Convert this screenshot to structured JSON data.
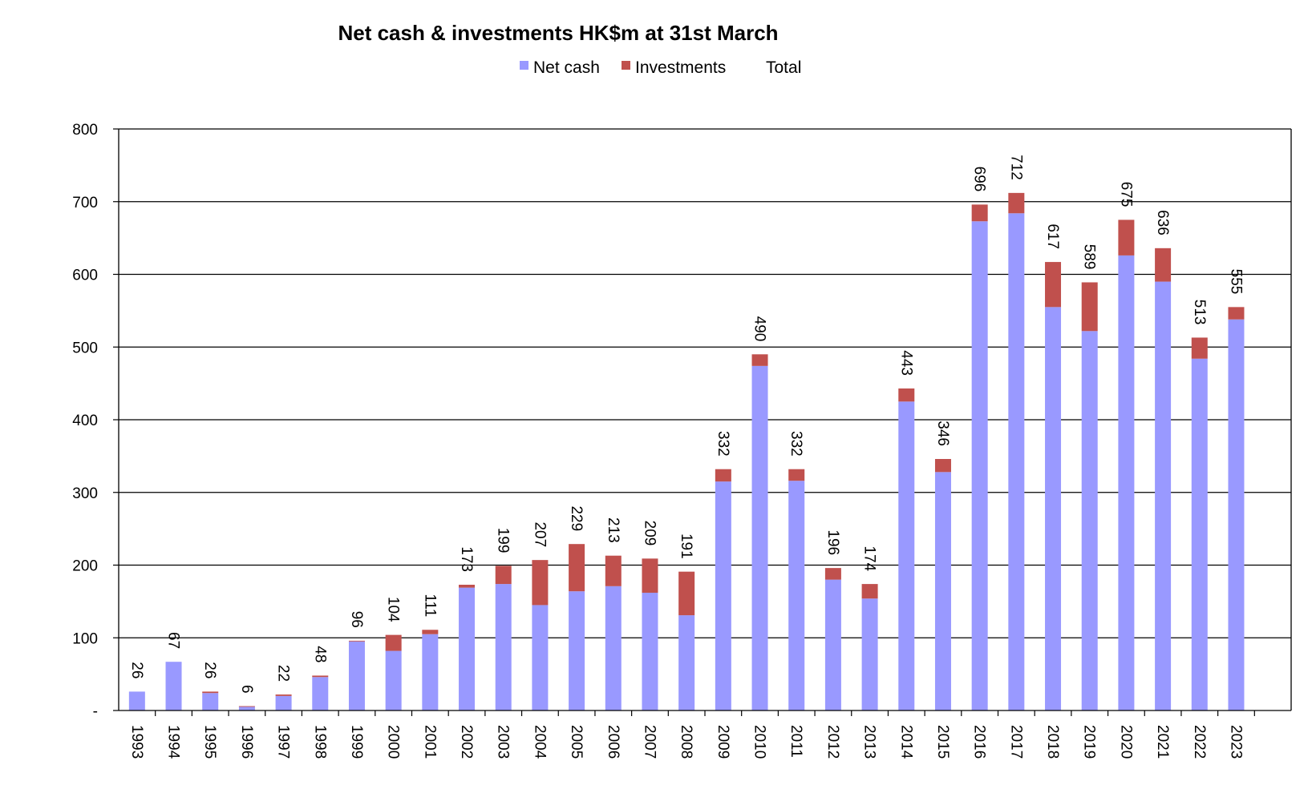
{
  "chart_data": {
    "type": "bar",
    "stacked": true,
    "title": "Net cash & investments HK$m at 31st March",
    "xlabel": "",
    "ylabel": "",
    "ylim": [
      0,
      800
    ],
    "yticks": [
      0,
      100,
      200,
      300,
      400,
      500,
      600,
      700,
      800
    ],
    "ytick_labels": [
      "-",
      "100",
      "200",
      "300",
      "400",
      "500",
      "600",
      "700",
      "800"
    ],
    "grid": true,
    "legend_position": "top",
    "categories": [
      "1993",
      "1994",
      "1995",
      "1996",
      "1997",
      "1998",
      "1999",
      "2000",
      "2001",
      "2002",
      "2003",
      "2004",
      "2005",
      "2006",
      "2007",
      "2008",
      "2009",
      "2010",
      "2011",
      "2012",
      "2013",
      "2014",
      "2015",
      "2016",
      "2017",
      "2018",
      "2019",
      "2020",
      "2021",
      "2022",
      "2023"
    ],
    "series": [
      {
        "name": "Net cash",
        "color": "#9999ff",
        "values": [
          26,
          67,
          24,
          5,
          20,
          46,
          95,
          82,
          105,
          169,
          174,
          145,
          164,
          171,
          162,
          131,
          315,
          474,
          316,
          180,
          154,
          425,
          328,
          673,
          684,
          555,
          522,
          626,
          590,
          484,
          538
        ]
      },
      {
        "name": "Investments",
        "color": "#c0504d",
        "values": [
          0,
          0,
          2,
          1,
          2,
          2,
          1,
          22,
          6,
          4,
          25,
          62,
          65,
          42,
          47,
          60,
          17,
          16,
          16,
          16,
          20,
          18,
          18,
          23,
          28,
          62,
          67,
          49,
          46,
          29,
          17
        ]
      }
    ],
    "totals": {
      "name": "Total",
      "values": [
        26,
        67,
        26,
        6,
        22,
        48,
        96,
        104,
        111,
        173,
        199,
        207,
        229,
        213,
        209,
        191,
        332,
        490,
        332,
        196,
        174,
        443,
        346,
        696,
        712,
        617,
        589,
        675,
        636,
        513,
        555
      ]
    }
  }
}
